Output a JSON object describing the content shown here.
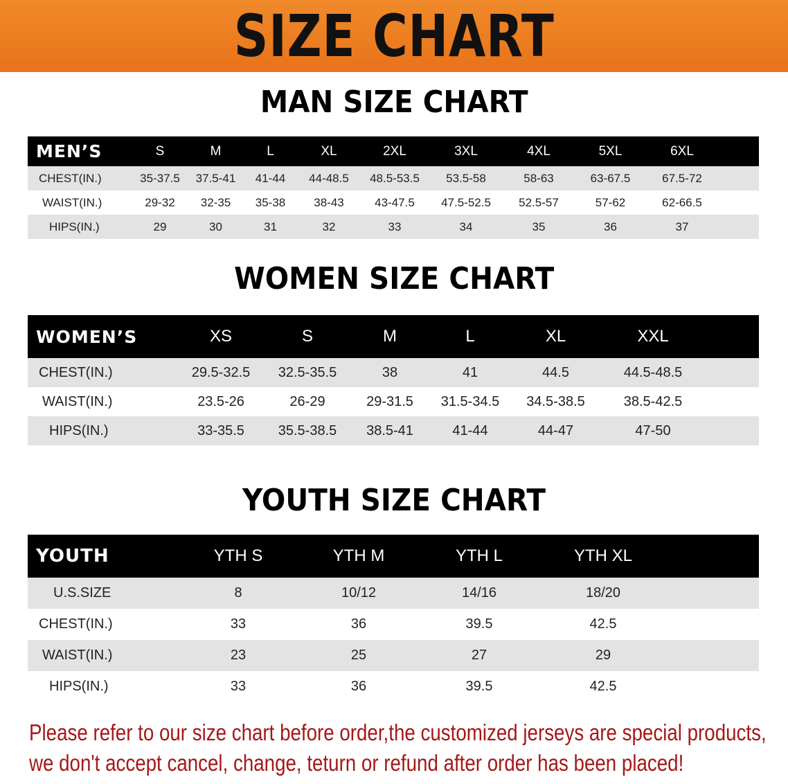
{
  "banner_title": "SIZE CHART",
  "men": {
    "title": "MAN SIZE CHART",
    "header_label": "MEN’S",
    "sizes": [
      "S",
      "M",
      "L",
      "XL",
      "2XL",
      "3XL",
      "4XL",
      "5XL",
      "6XL"
    ],
    "rows": [
      {
        "label": "CHEST(IN.)",
        "values": [
          "35-37.5",
          "37.5-41",
          "41-44",
          "44-48.5",
          "48.5-53.5",
          "53.5-58",
          "58-63",
          "63-67.5",
          "67.5-72"
        ]
      },
      {
        "label": "WAIST(IN.)",
        "values": [
          "29-32",
          "32-35",
          "35-38",
          "38-43",
          "43-47.5",
          "47.5-52.5",
          "52.5-57",
          "57-62",
          "62-66.5"
        ]
      },
      {
        "label": "HIPS(IN.)",
        "values": [
          "29",
          "30",
          "31",
          "32",
          "33",
          "34",
          "35",
          "36",
          "37"
        ]
      }
    ]
  },
  "women": {
    "title": "WOMEN SIZE CHART",
    "header_label": "WOMEN’S",
    "sizes": [
      "XS",
      "S",
      "M",
      "L",
      "XL",
      "XXL"
    ],
    "rows": [
      {
        "label": "CHEST(IN.)",
        "values": [
          "29.5-32.5",
          "32.5-35.5",
          "38",
          "41",
          "44.5",
          "44.5-48.5"
        ]
      },
      {
        "label": "WAIST(IN.)",
        "values": [
          "23.5-26",
          "26-29",
          "29-31.5",
          "31.5-34.5",
          "34.5-38.5",
          "38.5-42.5"
        ]
      },
      {
        "label": "HIPS(IN.)",
        "values": [
          "33-35.5",
          "35.5-38.5",
          "38.5-41",
          "41-44",
          "44-47",
          "47-50"
        ]
      }
    ]
  },
  "youth": {
    "title": "YOUTH SIZE CHART",
    "header_label": "YOUTH",
    "sizes": [
      "YTH S",
      "YTH M",
      "YTH L",
      "YTH XL"
    ],
    "rows": [
      {
        "label": "U.S.SIZE",
        "values": [
          "8",
          "10/12",
          "14/16",
          "18/20"
        ]
      },
      {
        "label": "CHEST(IN.)",
        "values": [
          "33",
          "36",
          "39.5",
          "42.5"
        ]
      },
      {
        "label": "WAIST(IN.)",
        "values": [
          "23",
          "25",
          "27",
          "29"
        ]
      },
      {
        "label": "HIPS(IN.)",
        "values": [
          "33",
          "36",
          "39.5",
          "42.5"
        ]
      }
    ]
  },
  "notice": {
    "line1": "Please refer to our size chart before order,the customized jerseys are special products,",
    "line2": "we don't accept cancel, change, teturn or refund after order has been placed!"
  },
  "colors": {
    "banner": "#e8731a",
    "header_row": "#000000",
    "stripe": "#e3e3e3",
    "notice": "#a51818"
  }
}
